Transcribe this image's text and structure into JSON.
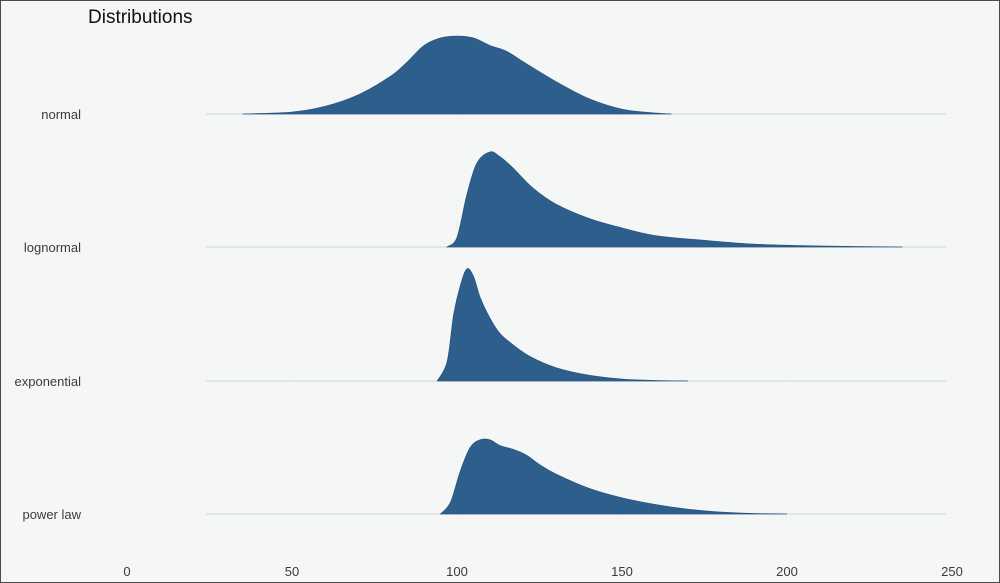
{
  "chart_data": {
    "type": "area",
    "title": "Distributions",
    "xlabel": "",
    "ylabel": "",
    "xlim": [
      0,
      250
    ],
    "x_ticks": [
      0,
      50,
      100,
      150,
      200,
      250
    ],
    "grid": true,
    "color": "#2e5f8c",
    "series": [
      {
        "name": "normal",
        "x": [
          35,
          50,
          60,
          70,
          80,
          85,
          90,
          95,
          100,
          105,
          110,
          115,
          120,
          130,
          140,
          150,
          160,
          165
        ],
        "density": [
          0,
          0.02,
          0.08,
          0.2,
          0.4,
          0.55,
          0.72,
          0.8,
          0.82,
          0.8,
          0.72,
          0.66,
          0.55,
          0.34,
          0.16,
          0.05,
          0.01,
          0
        ]
      },
      {
        "name": "lognormal",
        "x": [
          97,
          100,
          103,
          106,
          110,
          113,
          117,
          123,
          130,
          140,
          150,
          160,
          175,
          190,
          210,
          235
        ],
        "density": [
          0,
          0.1,
          0.55,
          0.88,
          1.0,
          0.95,
          0.83,
          0.62,
          0.45,
          0.3,
          0.2,
          0.12,
          0.07,
          0.03,
          0.01,
          0
        ]
      },
      {
        "name": "exponential",
        "x": [
          94,
          97,
          99,
          101,
          103,
          105,
          107,
          110,
          113,
          117,
          122,
          130,
          140,
          150,
          160,
          170
        ],
        "density": [
          0,
          0.2,
          0.7,
          1.0,
          1.18,
          1.1,
          0.88,
          0.66,
          0.5,
          0.38,
          0.26,
          0.14,
          0.06,
          0.02,
          0.005,
          0
        ]
      },
      {
        "name": "power law",
        "x": [
          95,
          98,
          101,
          104,
          107,
          110,
          113,
          117,
          121,
          125,
          130,
          140,
          150,
          160,
          170,
          180,
          190,
          200
        ],
        "density": [
          0,
          0.12,
          0.45,
          0.7,
          0.78,
          0.78,
          0.72,
          0.68,
          0.62,
          0.52,
          0.42,
          0.27,
          0.17,
          0.1,
          0.05,
          0.02,
          0.005,
          0
        ]
      }
    ]
  }
}
